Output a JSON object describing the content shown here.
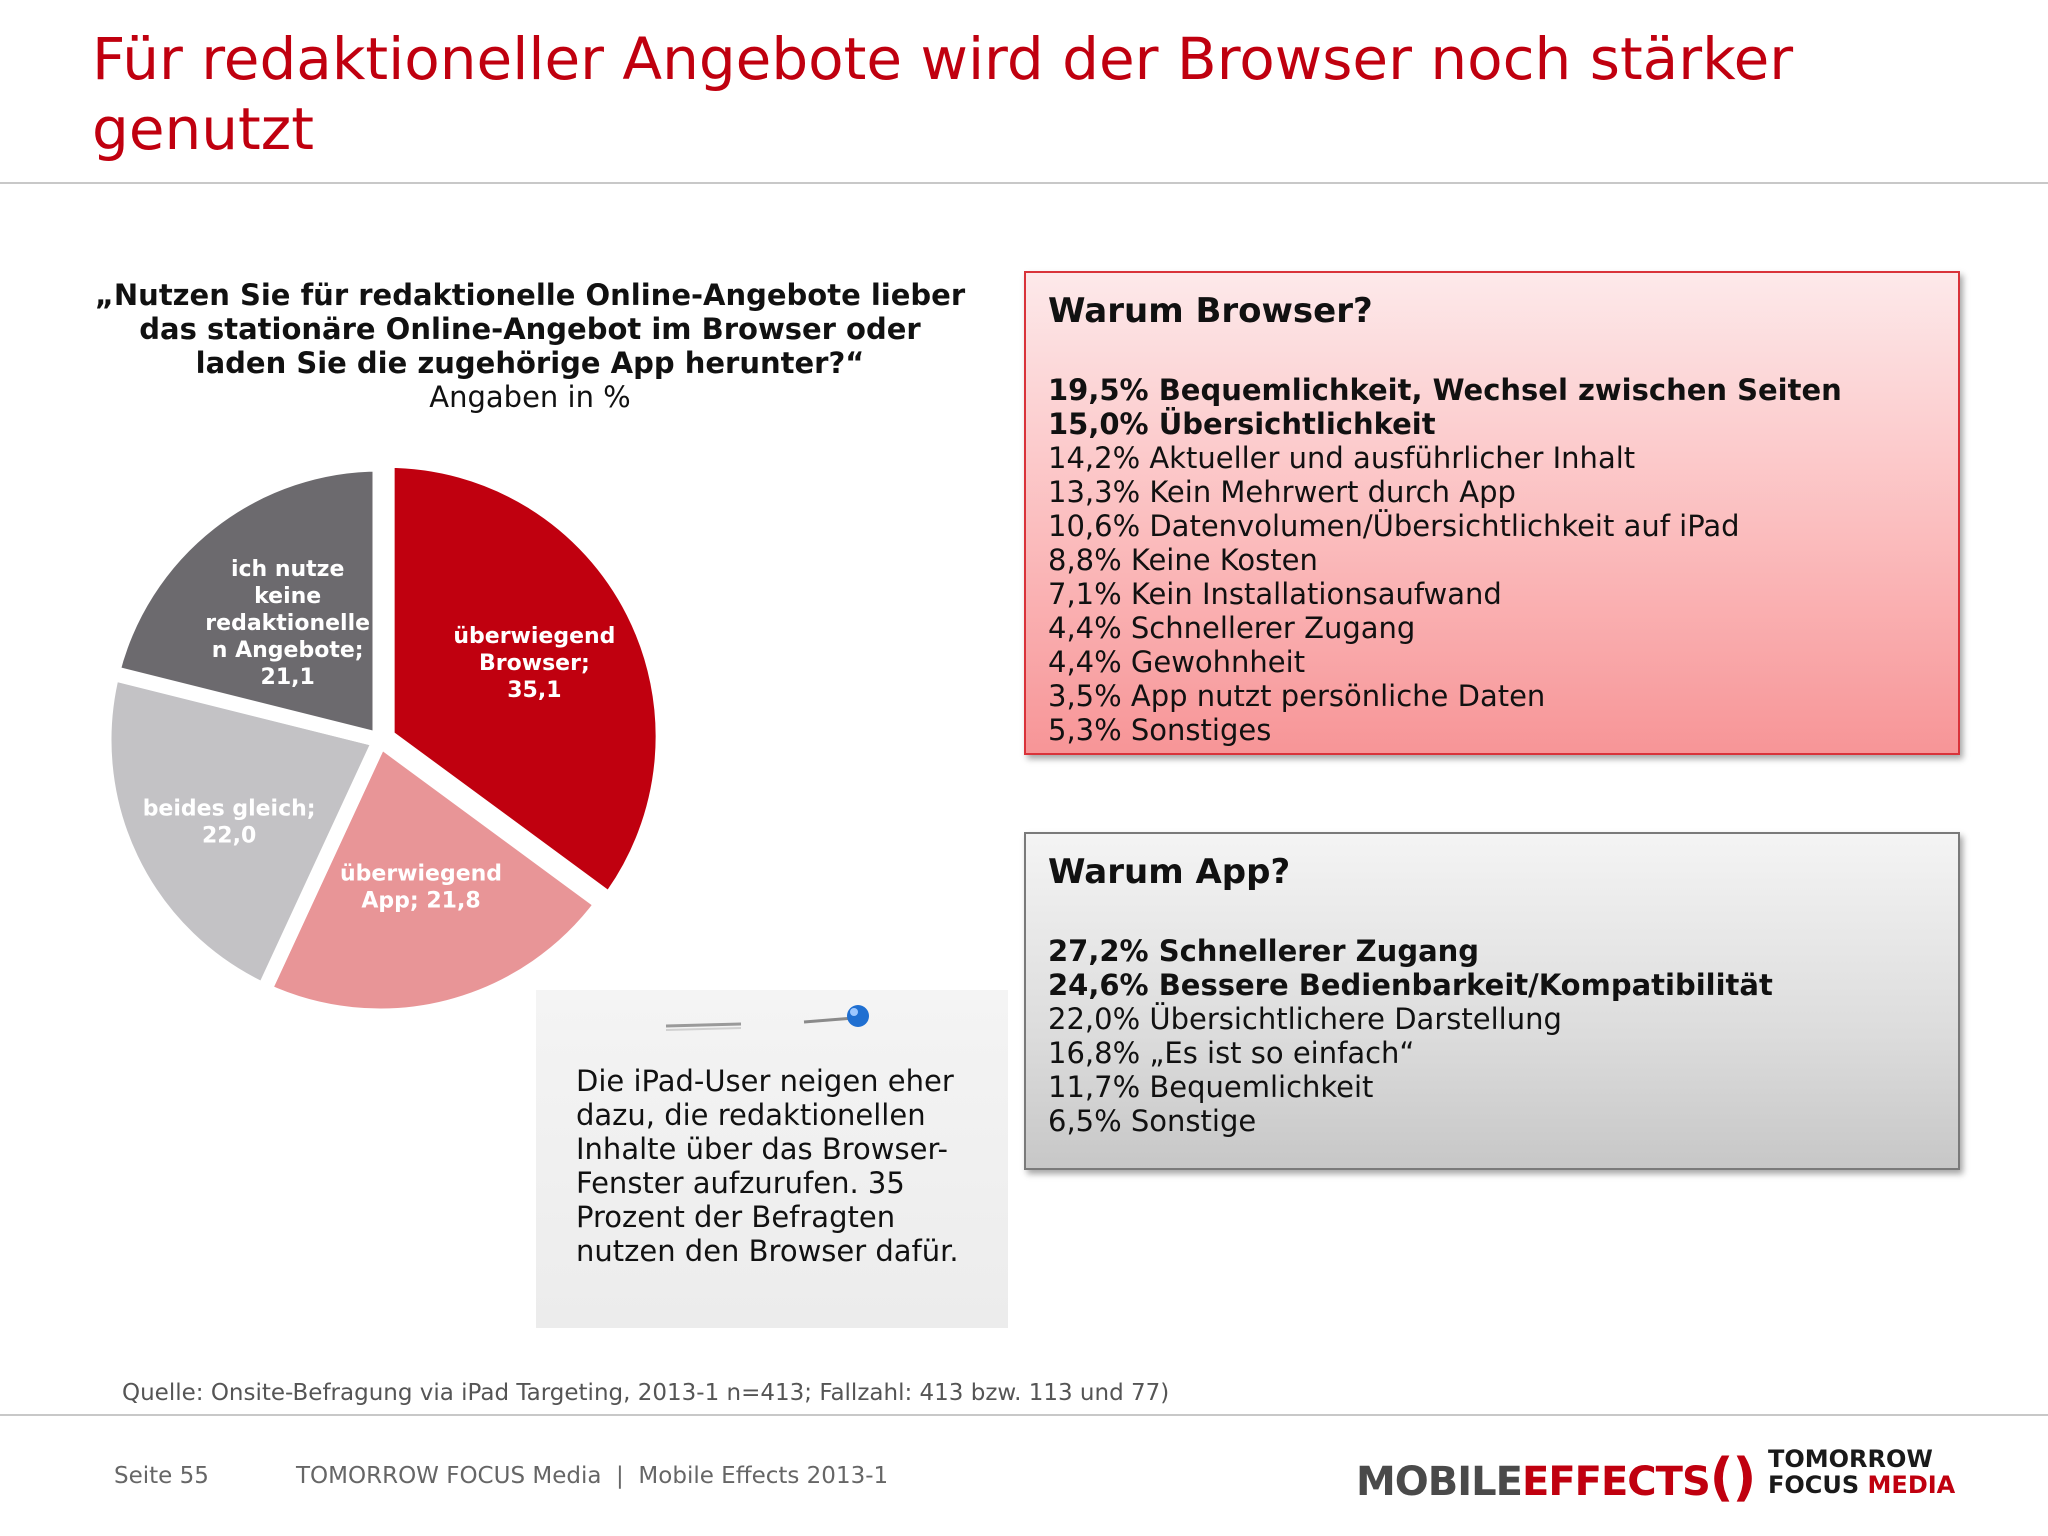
{
  "title": "Für redaktioneller  Angebote wird der Browser noch stärker genutzt",
  "question": "„Nutzen Sie für redaktionelle Online-Angebote lieber das stationäre Online-Angebot im Browser oder laden Sie die zugehörige App herunter?“",
  "unit_label": "Angaben in %",
  "chart_data": {
    "type": "pie",
    "slices": [
      {
        "label_lines": [
          "überwiegend",
          "Browser;",
          "35,1"
        ],
        "value": 35.1,
        "color": "#c0000f",
        "text_color": "#ffffff"
      },
      {
        "label_lines": [
          "überwiegend",
          "App; 21,8"
        ],
        "value": 21.8,
        "color": "#e89597",
        "text_color": "#ffffff"
      },
      {
        "label_lines": [
          "beides gleich;",
          "22,0"
        ],
        "value": 22.0,
        "color": "#c3c2c5",
        "text_color": "#ffffff"
      },
      {
        "label_lines": [
          "ich nutze",
          "keine",
          "redaktionelle",
          "n Angebote;",
          "21,1"
        ],
        "value": 21.1,
        "color": "#6c6a6e",
        "text_color": "#ffffff"
      }
    ]
  },
  "browser_box": {
    "heading": "Warum Browser?",
    "items": [
      {
        "text": "19,5% Bequemlichkeit, Wechsel zwischen Seiten",
        "bold": true
      },
      {
        "text": "15,0% Übersichtlichkeit",
        "bold": true
      },
      {
        "text": "14,2% Aktueller und ausführlicher Inhalt",
        "bold": false
      },
      {
        "text": "13,3% Kein Mehrwert durch App",
        "bold": false
      },
      {
        "text": "10,6% Datenvolumen/Übersichtlichkeit auf iPad",
        "bold": false
      },
      {
        "text": "8,8% Keine Kosten",
        "bold": false
      },
      {
        "text": "7,1% Kein Installationsaufwand",
        "bold": false
      },
      {
        "text": "4,4% Schnellerer Zugang",
        "bold": false
      },
      {
        "text": "4,4% Gewohnheit",
        "bold": false
      },
      {
        "text": "3,5% App nutzt persönliche Daten",
        "bold": false
      },
      {
        "text": "5,3% Sonstiges",
        "bold": false
      }
    ]
  },
  "app_box": {
    "heading": "Warum App?",
    "items": [
      {
        "text": "27,2% Schnellerer Zugang",
        "bold": true
      },
      {
        "text": "24,6% Bessere Bedienbarkeit/Kompatibilität",
        "bold": true
      },
      {
        "text": "22,0% Übersichtlichere Darstellung",
        "bold": false
      },
      {
        "text": "16,8% „Es ist so einfach“",
        "bold": false
      },
      {
        "text": "11,7% Bequemlichkeit",
        "bold": false
      },
      {
        "text": "6,5% Sonstige",
        "bold": false
      }
    ]
  },
  "note": {
    "text": "Die iPad-User neigen eher dazu, die redaktionellen Inhalte über das Browser-Fenster aufzurufen. 35 Prozent der Befragten nutzen den Browser dafür."
  },
  "source": "Quelle: Onsite-Befragung via iPad Targeting, 2013-1 n=413; Fallzahl: 413 bzw. 113 und 77)",
  "footer": {
    "page": "Seite 55",
    "company": "TOMORROW FOCUS Media  |  Mobile Effects 2013-1"
  },
  "logos": {
    "mobile": "MOBILE",
    "effects": "EFFECTS",
    "tomorrow": "TOMORROW",
    "focus": "FOCUS",
    "media": "MEDIA"
  }
}
